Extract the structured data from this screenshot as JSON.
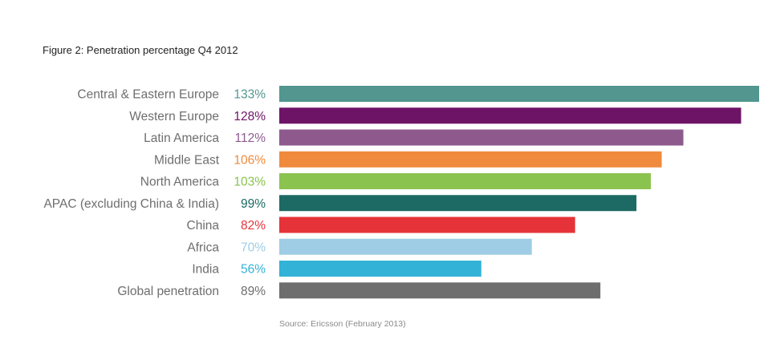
{
  "title": "Figure 2: Penetration percentage Q4 2012",
  "source": "Source: Ericsson (February 2013)",
  "chart_data": {
    "type": "bar",
    "orientation": "horizontal",
    "title": "Figure 2: Penetration percentage Q4 2012",
    "xlabel": "",
    "ylabel": "",
    "xlim": [
      0,
      133
    ],
    "grid": false,
    "legend": "none",
    "categories": [
      "Central & Eastern Europe",
      "Western Europe",
      "Latin America",
      "Middle East",
      "North America",
      "APAC (excluding China & India)",
      "China",
      "Africa",
      "India",
      "Global penetration"
    ],
    "values": [
      133,
      128,
      112,
      106,
      103,
      99,
      82,
      70,
      56,
      89
    ],
    "value_labels": [
      "133%",
      "128%",
      "112%",
      "106%",
      "103%",
      "99%",
      "82%",
      "70%",
      "56%",
      "89%"
    ],
    "colors": [
      "#52968f",
      "#6e1466",
      "#8e5a8e",
      "#f08a3c",
      "#8bc34f",
      "#1c6a63",
      "#e63339",
      "#9ecde5",
      "#33b2d7",
      "#6e6e6e"
    ],
    "label_colors": [
      "#52968f",
      "#6e1466",
      "#8e5a8e",
      "#f08a3c",
      "#8bc34f",
      "#1c6a63",
      "#e63339",
      "#9ecde5",
      "#33b2d7",
      "#6e6e6e"
    ],
    "category_label_color": "#6e6e6e"
  }
}
